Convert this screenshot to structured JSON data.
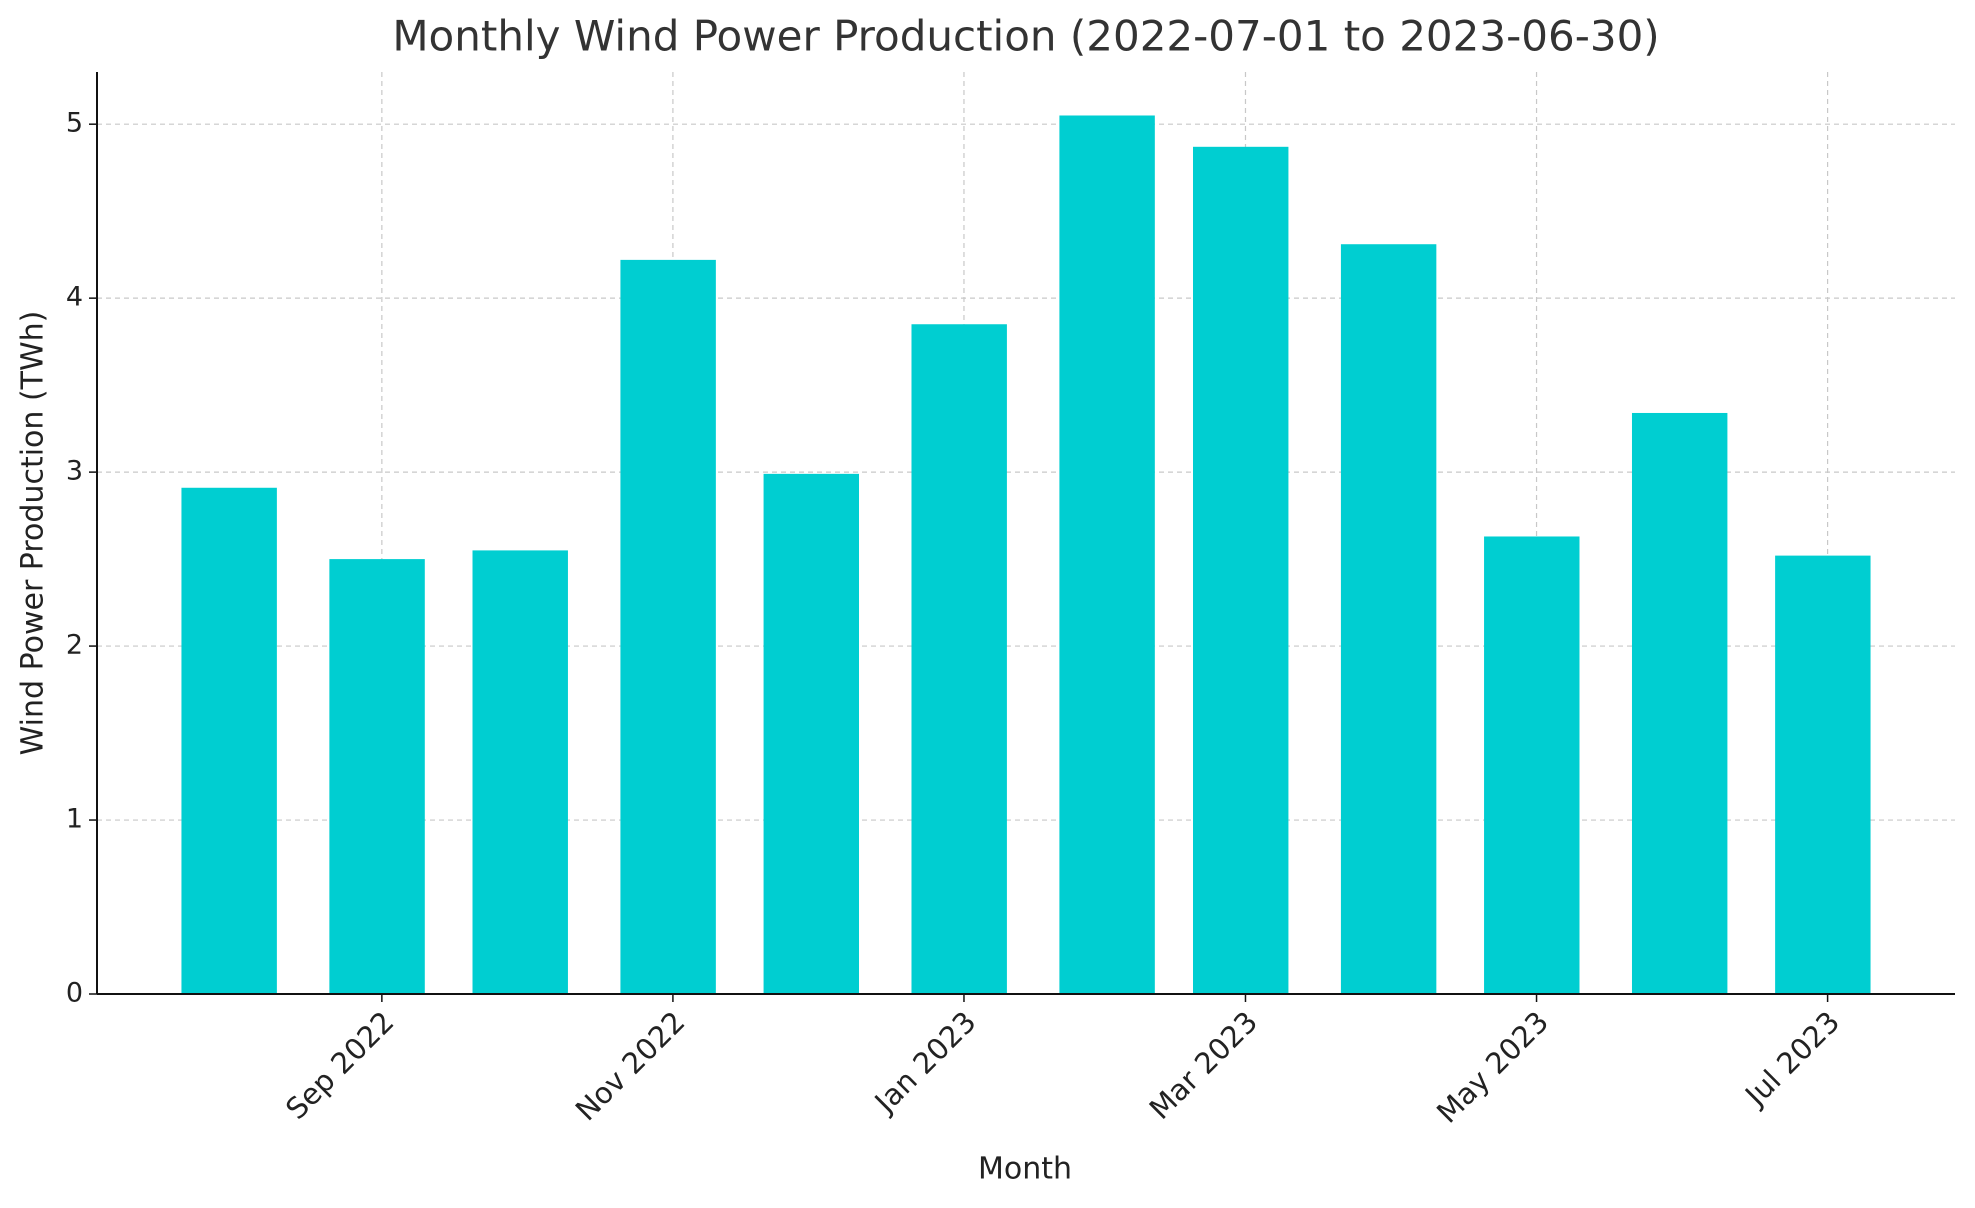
{
  "chart_data": {
    "type": "bar",
    "title": "Monthly Wind Power Production (2022-07-01 to 2023-06-30)",
    "x_label": "Month",
    "y_label": "Wind Power Production (TWh)",
    "x": [
      "2022-07",
      "2022-08",
      "2022-09",
      "2022-10",
      "2022-11",
      "2022-12",
      "2023-01",
      "2023-02",
      "2023-03",
      "2023-04",
      "2023-05",
      "2023-06"
    ],
    "values": [
      2.91,
      2.5,
      2.55,
      4.22,
      2.99,
      3.85,
      5.05,
      4.87,
      4.31,
      2.63,
      3.34,
      2.52
    ],
    "color": "#00ced1",
    "ylim": [
      0,
      5.3
    ],
    "yticks": [
      0,
      1,
      2,
      3,
      4,
      5
    ],
    "xticks": [
      {
        "value": "2022-09",
        "label": "Sep 2022"
      },
      {
        "value": "2022-11",
        "label": "Nov 2022"
      },
      {
        "value": "2023-01",
        "label": "Jan 2023"
      },
      {
        "value": "2023-03",
        "label": "Mar 2023"
      },
      {
        "value": "2023-05",
        "label": "May 2023"
      },
      {
        "value": "2023-07",
        "label": "Jul 2023"
      }
    ],
    "grid": true
  }
}
